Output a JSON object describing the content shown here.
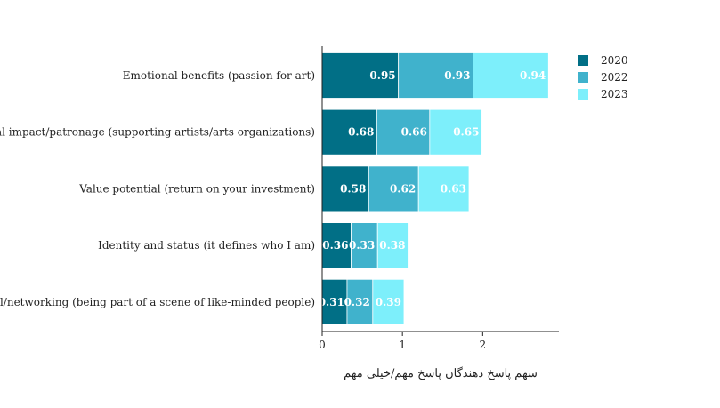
{
  "chart_data": {
    "type": "bar",
    "orientation": "horizontal",
    "stacked": true,
    "categories": [
      "Emotional benefits (passion for art)",
      "Social impact/patronage (supporting artists/arts organizations)",
      "Value potential (return on your investment)",
      "Identity and status (it defines who I am)",
      "Social/networking (being part of a scene of like-minded people)"
    ],
    "series": [
      {
        "name": "2020",
        "color": "#016f86",
        "values": [
          0.95,
          0.68,
          0.58,
          0.36,
          0.31
        ]
      },
      {
        "name": "2022",
        "color": "#40b2cc",
        "values": [
          0.93,
          0.66,
          0.62,
          0.33,
          0.32
        ]
      },
      {
        "name": "2023",
        "color": "#7deffb",
        "values": [
          0.94,
          0.65,
          0.63,
          0.38,
          0.39
        ]
      }
    ],
    "data_labels": [
      [
        "0.95",
        "0.68",
        "0.58",
        "0.36",
        "0.31"
      ],
      [
        "0.93",
        "0.66",
        "0.62",
        "0.33",
        "0.32"
      ],
      [
        "0.94",
        "0.65",
        "0.63",
        "0.38",
        "0.39"
      ]
    ],
    "xlabel": "سهم پاسخ دهندگان پاسخ مهم/خیلی مهم",
    "ylabel": "",
    "xlim": [
      0,
      2.95
    ],
    "xticks": [
      0,
      1,
      2
    ],
    "xtick_labels": [
      "0",
      "1",
      "2"
    ],
    "grid": false,
    "legend_position": "top-right"
  }
}
